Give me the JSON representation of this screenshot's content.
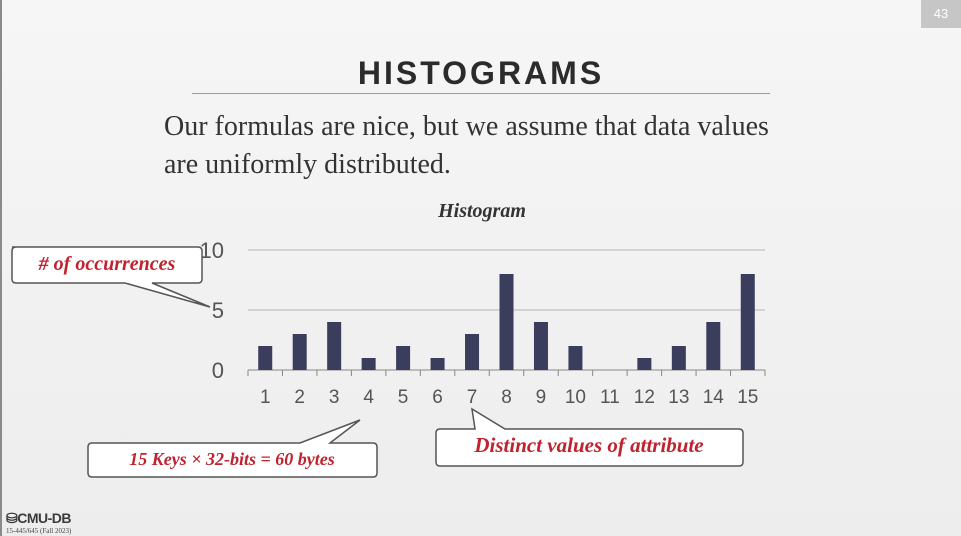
{
  "page_number": "43",
  "title": "HISTOGRAMS",
  "body_text": "Our formulas are nice, but we assume that data values are uniformly distributed.",
  "callouts": {
    "y_axis": "# of occurrences",
    "keys": "15 Keys × 32-bits = 60 bytes",
    "x_axis": "Distinct values of attribute"
  },
  "footer": {
    "logo": "CMU-DB",
    "course": "15-445/645 (Fall 2023)"
  },
  "colors": {
    "bar": "#3b3d5c",
    "callout_text": "#c0222e"
  },
  "chart_data": {
    "type": "bar",
    "title": "Histogram",
    "categories": [
      "1",
      "2",
      "3",
      "4",
      "5",
      "6",
      "7",
      "8",
      "9",
      "10",
      "11",
      "12",
      "13",
      "14",
      "15"
    ],
    "values": [
      2,
      3,
      4,
      1,
      2,
      1,
      3,
      8,
      4,
      2,
      0,
      1,
      2,
      4,
      8
    ],
    "ylim": [
      0,
      10
    ],
    "yticks": [
      "0",
      "5",
      "10"
    ],
    "grid": true
  }
}
